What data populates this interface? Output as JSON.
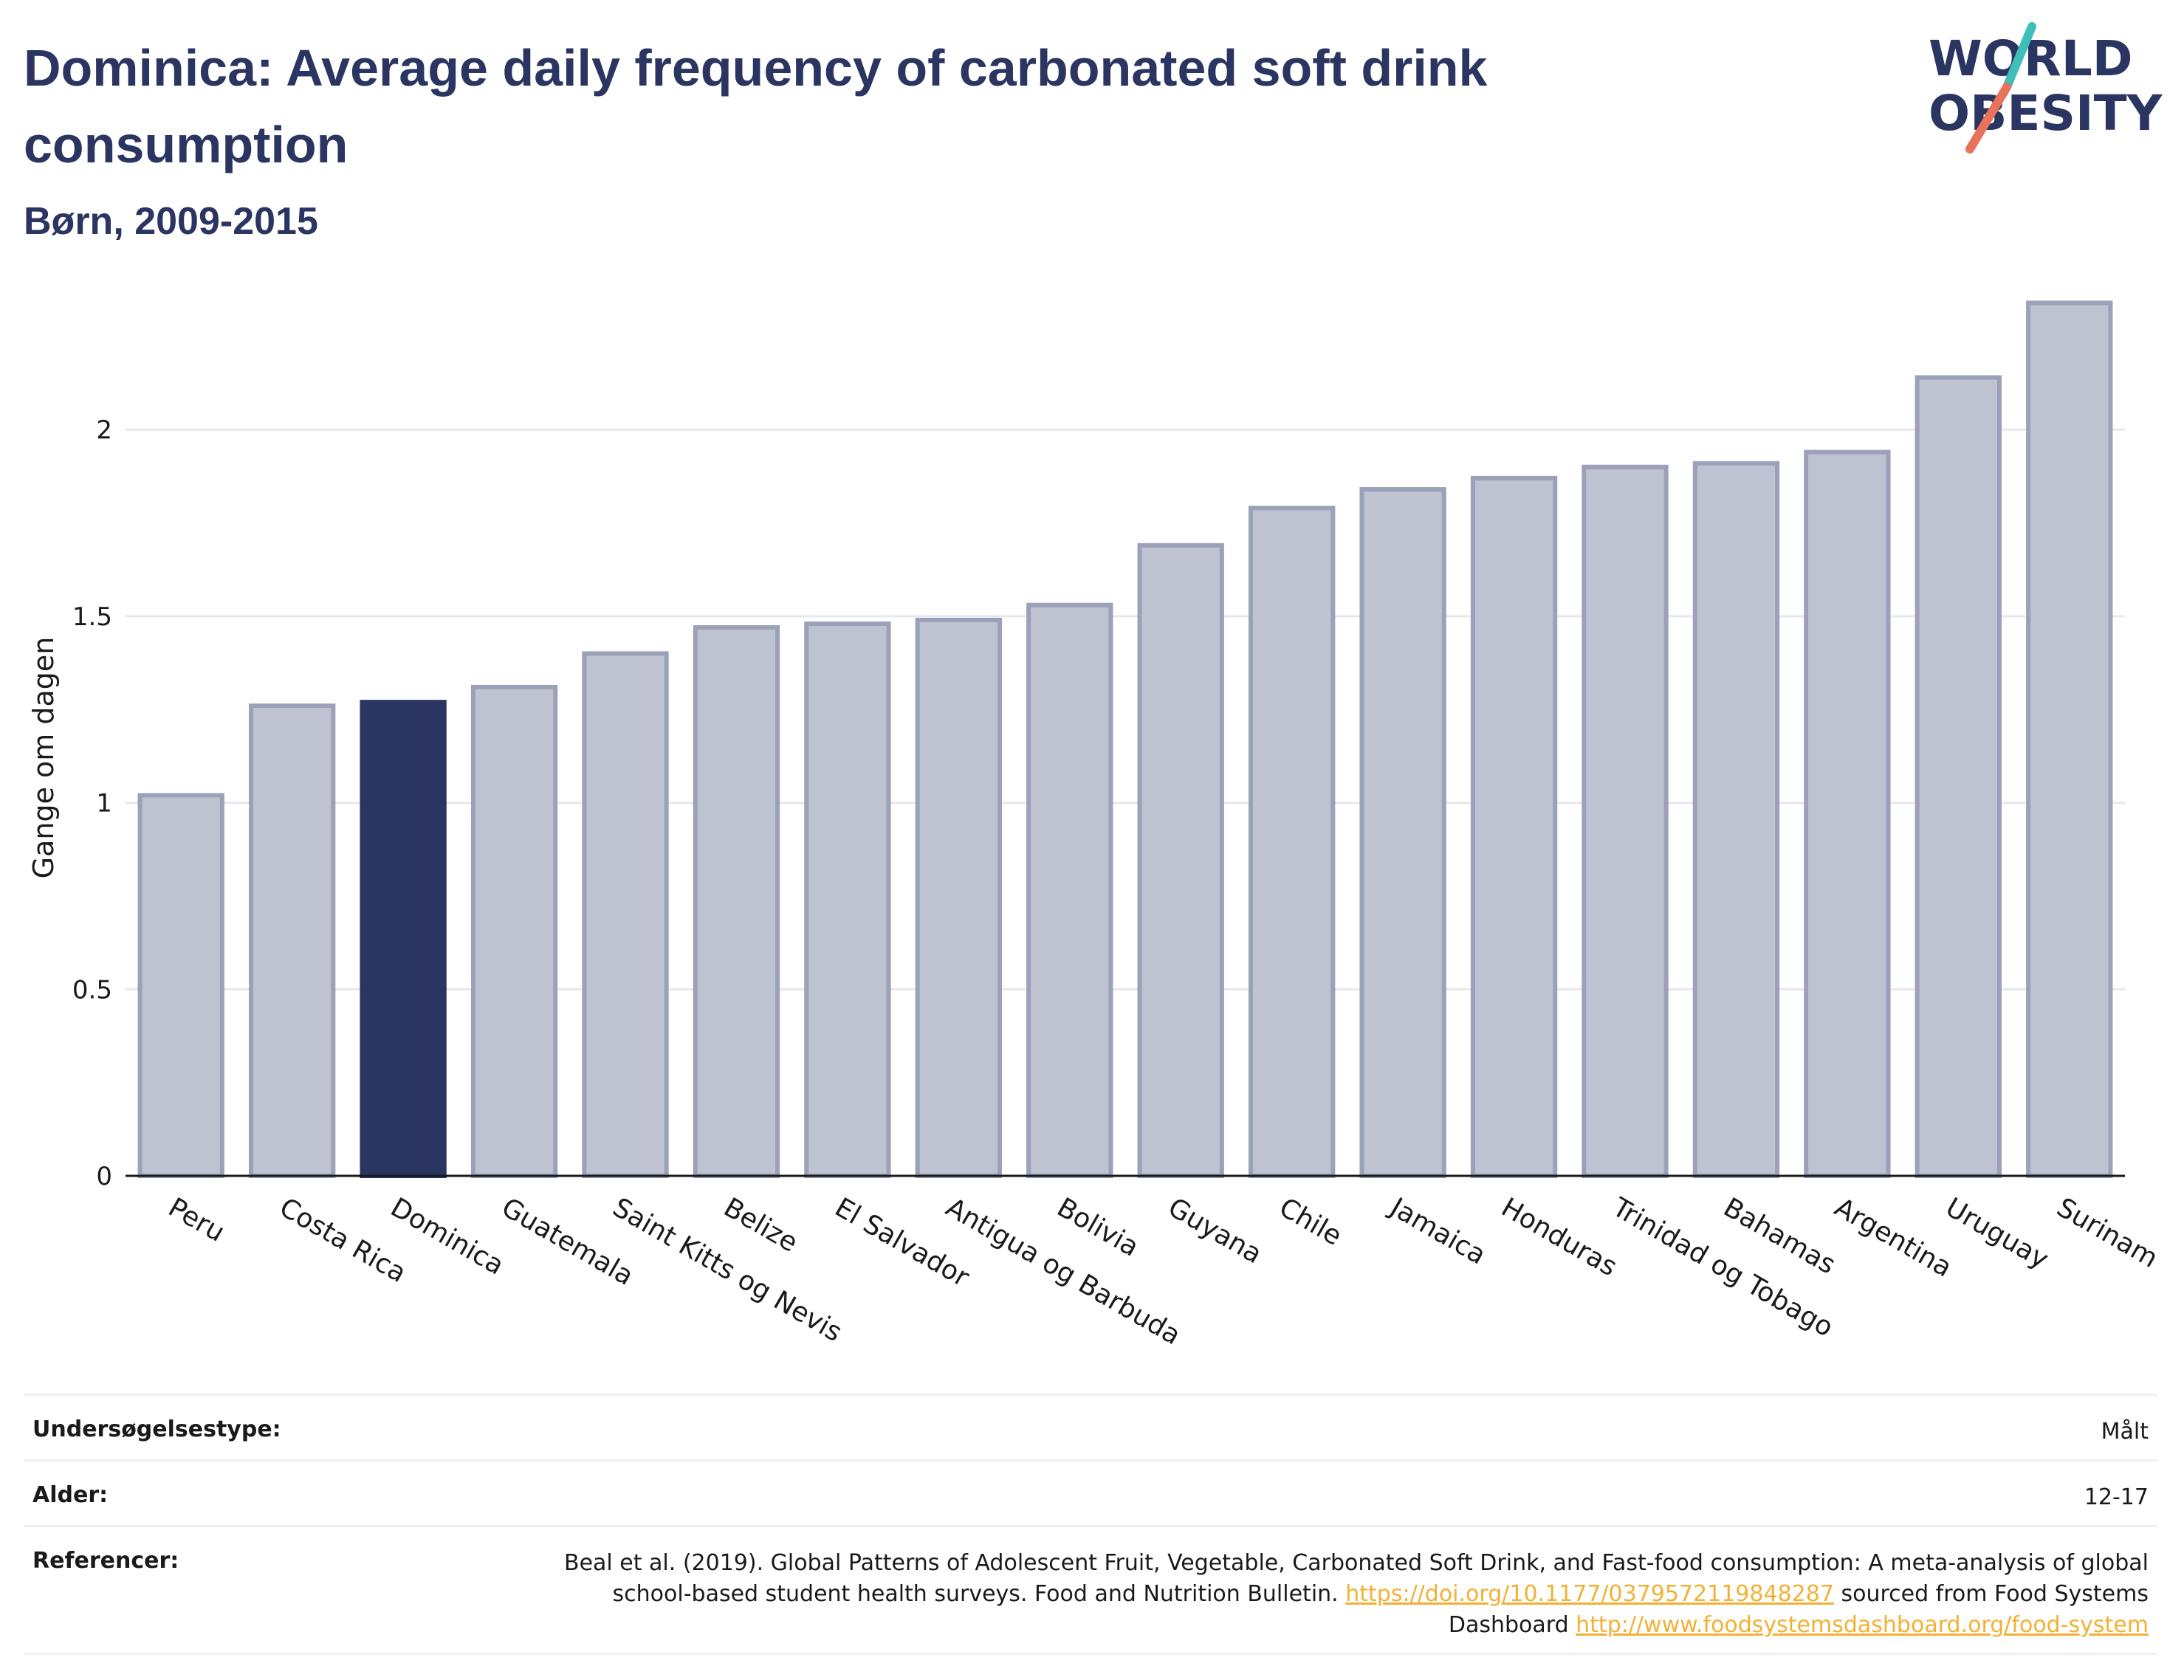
{
  "header": {
    "title": "Dominica: Average daily frequency of carbonated soft drink consumption",
    "subtitle": "Børn, 2009-2015"
  },
  "logo": {
    "line1": "WORLD",
    "line2": "OBESITY",
    "colors": {
      "text": "#2b3561",
      "slash_top": "#3fbfb8",
      "slash_bottom": "#e8735a"
    }
  },
  "colors": {
    "bar": "#bfc3d1",
    "bar_border": "#9aa1b8",
    "highlight": "#2b3561",
    "grid": "#e6e8ee",
    "axis": "#1a1a1a",
    "link": "#f2b134"
  },
  "chart_data": {
    "type": "bar",
    "ylabel": "Gange om dagen",
    "xlabel": "",
    "ylim": [
      0,
      2.4
    ],
    "yticks": [
      0,
      0.5,
      1,
      1.5,
      2
    ],
    "ytick_labels": [
      "0",
      "0.5",
      "1",
      "1.5",
      "2"
    ],
    "grid": true,
    "highlight": "Dominica",
    "categories": [
      "Peru",
      "Costa Rica",
      "Dominica",
      "Guatemala",
      "Saint Kitts og Nevis",
      "Belize",
      "El Salvador",
      "Antigua og Barbuda",
      "Bolivia",
      "Guyana",
      "Chile",
      "Jamaica",
      "Honduras",
      "Trinidad og Tobago",
      "Bahamas",
      "Argentina",
      "Uruguay",
      "Surinam"
    ],
    "values": [
      1.02,
      1.26,
      1.27,
      1.31,
      1.4,
      1.47,
      1.48,
      1.49,
      1.53,
      1.69,
      1.79,
      1.84,
      1.87,
      1.9,
      1.91,
      1.94,
      2.14,
      2.34
    ]
  },
  "meta": {
    "rows": [
      {
        "key": "Undersøgelsestype:",
        "value": "Målt"
      },
      {
        "key": "Alder:",
        "value": "12-17"
      }
    ],
    "reference": {
      "key": "Referencer:",
      "text1": "Beal et al. (2019). Global Patterns of Adolescent Fruit, Vegetable, Carbonated Soft Drink, and Fast-food consumption: A meta-analysis of global school-based student health surveys. Food and Nutrition Bulletin. ",
      "link1": "https://doi.org/10.1177/0379572119848287",
      "text2": " sourced from Food Systems Dashboard ",
      "link2": "http://www.foodsystemsdashboard.org/food-system"
    }
  }
}
